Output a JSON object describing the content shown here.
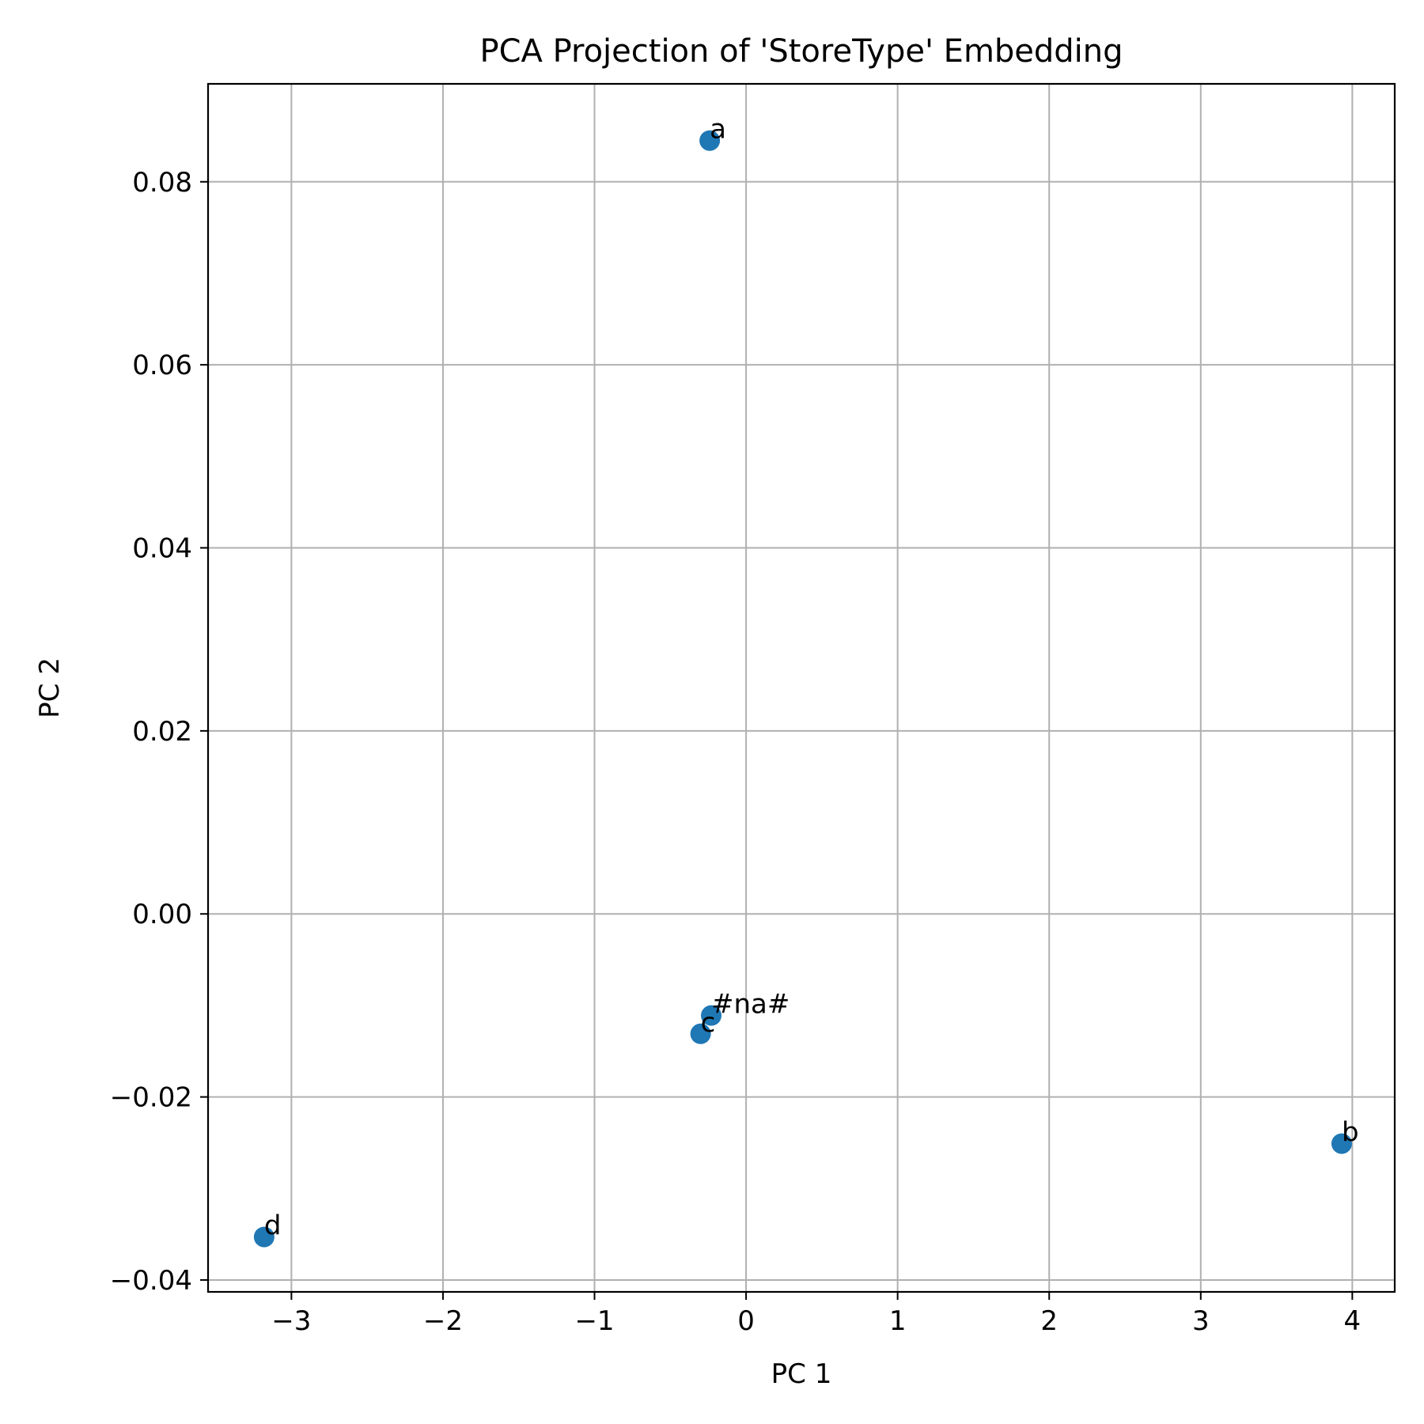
{
  "chart_data": {
    "type": "scatter",
    "title": "PCA Projection of 'StoreType' Embedding",
    "xlabel": "PC 1",
    "ylabel": "PC 2",
    "xlim": [
      -3.55,
      4.28
    ],
    "ylim": [
      -0.0413,
      0.0907
    ],
    "xticks": [
      -3,
      -2,
      -1,
      0,
      1,
      2,
      3,
      4
    ],
    "xtick_labels": [
      "−3",
      "−2",
      "−1",
      "0",
      "1",
      "2",
      "3",
      "4"
    ],
    "yticks": [
      -0.04,
      -0.02,
      0.0,
      0.02,
      0.04,
      0.06,
      0.08
    ],
    "ytick_labels": [
      "−0.04",
      "−0.02",
      "0.00",
      "0.02",
      "0.04",
      "0.06",
      "0.08"
    ],
    "grid": true,
    "marker_color": "#1f77b4",
    "points": [
      {
        "label": "a",
        "x": -0.24,
        "y": 0.0845
      },
      {
        "label": "#na#",
        "x": -0.23,
        "y": -0.0111
      },
      {
        "label": "c",
        "x": -0.3,
        "y": -0.0131
      },
      {
        "label": "b",
        "x": 3.93,
        "y": -0.0251
      },
      {
        "label": "d",
        "x": -3.18,
        "y": -0.0353
      }
    ]
  }
}
